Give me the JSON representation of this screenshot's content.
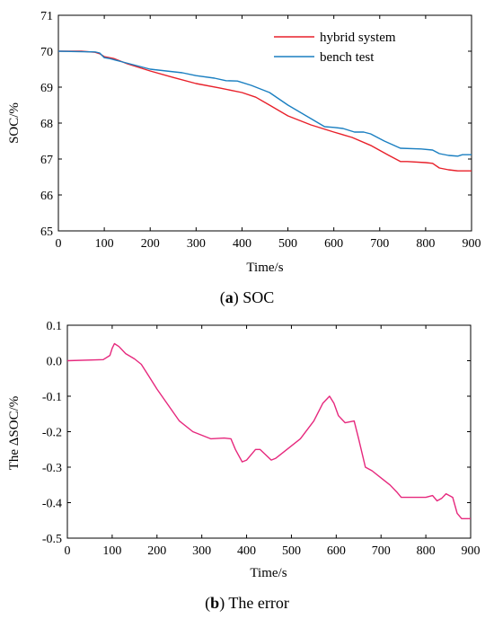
{
  "chart_data": [
    {
      "type": "line",
      "caption_letter": "a",
      "caption_paren_open": "(",
      "caption_paren_close": ")",
      "caption_text": " SOC",
      "xlabel": "Time/s",
      "ylabel": "SOC/%",
      "xlim": [
        0,
        900
      ],
      "ylim": [
        65,
        71
      ],
      "xticks": [
        0,
        100,
        200,
        300,
        400,
        500,
        600,
        700,
        800,
        900
      ],
      "yticks": [
        65,
        66,
        67,
        68,
        69,
        70,
        71
      ],
      "grid": false,
      "legend_position": "top-right",
      "series": [
        {
          "name": "hybrid system",
          "color": "#e8202a",
          "x": [
            0,
            50,
            80,
            90,
            100,
            120,
            150,
            200,
            250,
            300,
            350,
            400,
            430,
            460,
            500,
            550,
            600,
            640,
            680,
            720,
            745,
            760,
            800,
            815,
            830,
            850,
            870,
            900
          ],
          "y": [
            70.0,
            70.0,
            69.97,
            69.93,
            69.85,
            69.8,
            69.65,
            69.45,
            69.27,
            69.1,
            68.98,
            68.85,
            68.72,
            68.5,
            68.2,
            67.95,
            67.75,
            67.6,
            67.38,
            67.1,
            66.93,
            66.93,
            66.9,
            66.88,
            66.75,
            66.7,
            66.67,
            66.67
          ]
        },
        {
          "name": "bench test",
          "color": "#1a7fc1",
          "x": [
            0,
            80,
            90,
            100,
            110,
            140,
            200,
            270,
            300,
            340,
            365,
            390,
            420,
            460,
            500,
            560,
            580,
            600,
            620,
            645,
            665,
            680,
            710,
            745,
            790,
            815,
            830,
            850,
            870,
            880,
            900
          ],
          "y": [
            70.0,
            69.98,
            69.95,
            69.82,
            69.8,
            69.7,
            69.5,
            69.4,
            69.32,
            69.25,
            69.18,
            69.17,
            69.05,
            68.85,
            68.5,
            68.05,
            67.9,
            67.88,
            67.85,
            67.75,
            67.75,
            67.7,
            67.5,
            67.3,
            67.28,
            67.25,
            67.15,
            67.1,
            67.08,
            67.12,
            67.12
          ]
        }
      ]
    },
    {
      "type": "line",
      "caption_letter": "b",
      "caption_paren_open": "(",
      "caption_paren_close": ")",
      "caption_text": " The error",
      "xlabel": "Time/s",
      "ylabel": "The ΔSOC/%",
      "xlim": [
        0,
        900
      ],
      "ylim": [
        -0.5,
        0.1
      ],
      "xticks": [
        0,
        100,
        200,
        300,
        400,
        500,
        600,
        700,
        800,
        900
      ],
      "yticks": [
        0.1,
        0.0,
        -0.1,
        -0.2,
        -0.3,
        -0.4,
        -0.5
      ],
      "ytick_labels": [
        "0.1",
        "0.0",
        "-0.1",
        "-0.2",
        "-0.3",
        "-0.4",
        "-0.5"
      ],
      "grid": false,
      "series": [
        {
          "color": "#e6287d",
          "x": [
            0,
            80,
            95,
            100,
            105,
            115,
            130,
            150,
            165,
            180,
            200,
            250,
            280,
            320,
            350,
            365,
            375,
            390,
            400,
            420,
            430,
            440,
            455,
            465,
            480,
            520,
            550,
            570,
            585,
            595,
            605,
            620,
            640,
            650,
            665,
            680,
            700,
            720,
            735,
            745,
            760,
            800,
            815,
            825,
            835,
            845,
            860,
            870,
            880,
            900
          ],
          "y": [
            0.0,
            0.003,
            0.015,
            0.035,
            0.048,
            0.04,
            0.02,
            0.005,
            -0.01,
            -0.04,
            -0.08,
            -0.17,
            -0.2,
            -0.22,
            -0.218,
            -0.22,
            -0.25,
            -0.285,
            -0.28,
            -0.25,
            -0.25,
            -0.262,
            -0.28,
            -0.275,
            -0.26,
            -0.22,
            -0.17,
            -0.12,
            -0.1,
            -0.12,
            -0.155,
            -0.175,
            -0.17,
            -0.22,
            -0.3,
            -0.31,
            -0.33,
            -0.35,
            -0.37,
            -0.385,
            -0.385,
            -0.385,
            -0.38,
            -0.395,
            -0.388,
            -0.375,
            -0.385,
            -0.43,
            -0.445,
            -0.445
          ]
        }
      ]
    }
  ]
}
